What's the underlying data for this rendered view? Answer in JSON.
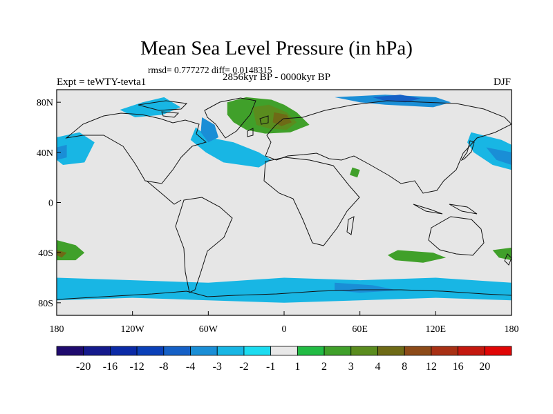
{
  "header": {
    "title": "Mean Sea Level Pressure (in hPa)",
    "stats": "rmsd= 0.777272 diff= 0.0148315",
    "experiment": "Expt = teWTY-tevta1",
    "period": "2856kyr BP - 0000kyr BP",
    "season": "DJF"
  },
  "axes": {
    "lat_ticks": [
      {
        "value": 80,
        "label": "80N"
      },
      {
        "value": 40,
        "label": "40N"
      },
      {
        "value": 0,
        "label": "0"
      },
      {
        "value": -40,
        "label": "40S"
      },
      {
        "value": -80,
        "label": "80S"
      }
    ],
    "lon_ticks": [
      {
        "value": -180,
        "label": "180"
      },
      {
        "value": -120,
        "label": "120W"
      },
      {
        "value": -60,
        "label": "60W"
      },
      {
        "value": 0,
        "label": "0"
      },
      {
        "value": 60,
        "label": "60E"
      },
      {
        "value": 120,
        "label": "120E"
      },
      {
        "value": 180,
        "label": "180"
      }
    ],
    "lon_range": [
      -180,
      180
    ],
    "lat_range": [
      -90,
      90
    ]
  },
  "colorbar": {
    "labels": [
      "-20",
      "-16",
      "-12",
      "-8",
      "-4",
      "-3",
      "-2",
      "-1",
      "1",
      "2",
      "3",
      "4",
      "8",
      "12",
      "16",
      "20"
    ],
    "colors": [
      "#1f0a6e",
      "#151a8c",
      "#0b2aa6",
      "#0a40b8",
      "#1560c6",
      "#1a8ed6",
      "#18b6e4",
      "#1cdcf0",
      "#e8e8e8",
      "#22bb44",
      "#40a02a",
      "#5a8c1e",
      "#6e6a16",
      "#8c4a18",
      "#a83014",
      "#c4180e",
      "#e00606"
    ]
  },
  "map": {
    "background": "#e6e6e6",
    "anomaly_regions": [
      {
        "name": "north-pacific-negative",
        "level": "-2",
        "points": [
          [
            -180,
            52
          ],
          [
            -162,
            56
          ],
          [
            -150,
            48
          ],
          [
            -158,
            32
          ],
          [
            -175,
            30
          ],
          [
            -180,
            34
          ]
        ]
      },
      {
        "name": "north-pacific-core",
        "level": "-3",
        "points": [
          [
            -180,
            44
          ],
          [
            -172,
            46
          ],
          [
            -172,
            36
          ],
          [
            -180,
            34
          ]
        ]
      },
      {
        "name": "north-atlantic-negative",
        "level": "-2",
        "points": [
          [
            -70,
            60
          ],
          [
            -60,
            52
          ],
          [
            -40,
            48
          ],
          [
            -20,
            40
          ],
          [
            -10,
            34
          ],
          [
            -20,
            28
          ],
          [
            -48,
            32
          ],
          [
            -62,
            40
          ],
          [
            -74,
            50
          ]
        ]
      },
      {
        "name": "labrador-negative",
        "level": "-3",
        "points": [
          [
            -65,
            68
          ],
          [
            -55,
            62
          ],
          [
            -52,
            52
          ],
          [
            -60,
            48
          ],
          [
            -66,
            56
          ]
        ]
      },
      {
        "name": "west-pacific-negative",
        "level": "-2",
        "points": [
          [
            148,
            56
          ],
          [
            172,
            50
          ],
          [
            180,
            46
          ],
          [
            180,
            26
          ],
          [
            165,
            30
          ],
          [
            150,
            40
          ],
          [
            145,
            48
          ]
        ]
      },
      {
        "name": "west-pacific-core",
        "level": "-3",
        "points": [
          [
            160,
            44
          ],
          [
            180,
            40
          ],
          [
            180,
            30
          ],
          [
            168,
            34
          ]
        ]
      },
      {
        "name": "canada-arctic-negative",
        "level": "-2",
        "points": [
          [
            -130,
            74
          ],
          [
            -112,
            80
          ],
          [
            -95,
            84
          ],
          [
            -82,
            76
          ],
          [
            -96,
            70
          ],
          [
            -118,
            68
          ]
        ]
      },
      {
        "name": "siberia-arctic-negative",
        "level": "-3",
        "points": [
          [
            40,
            84
          ],
          [
            80,
            86
          ],
          [
            120,
            84
          ],
          [
            132,
            80
          ],
          [
            118,
            76
          ],
          [
            80,
            78
          ],
          [
            60,
            80
          ]
        ]
      },
      {
        "name": "siberia-arctic-core",
        "level": "-4",
        "points": [
          [
            70,
            84
          ],
          [
            92,
            86
          ],
          [
            108,
            83
          ],
          [
            96,
            80
          ],
          [
            80,
            81
          ]
        ]
      },
      {
        "name": "greenland-low",
        "level": "2",
        "points": [
          [
            -45,
            80
          ],
          [
            -30,
            84
          ],
          [
            -10,
            82
          ],
          [
            0,
            78
          ],
          [
            10,
            72
          ],
          [
            20,
            62
          ],
          [
            5,
            56
          ],
          [
            -15,
            55
          ],
          [
            -30,
            58
          ],
          [
            -40,
            64
          ],
          [
            -45,
            70
          ]
        ]
      },
      {
        "name": "greenland-low-mid",
        "level": "3",
        "points": [
          [
            -25,
            76
          ],
          [
            -12,
            78
          ],
          [
            2,
            72
          ],
          [
            10,
            64
          ],
          [
            2,
            58
          ],
          [
            -12,
            59
          ],
          [
            -22,
            62
          ]
        ]
      },
      {
        "name": "greenland-low-core",
        "level": "4",
        "points": [
          [
            -8,
            72
          ],
          [
            2,
            70
          ],
          [
            6,
            64
          ],
          [
            -2,
            61
          ],
          [
            -9,
            64
          ]
        ]
      },
      {
        "name": "red-sea-positive",
        "level": "2",
        "points": [
          [
            54,
            28
          ],
          [
            60,
            26
          ],
          [
            58,
            20
          ],
          [
            52,
            22
          ]
        ]
      },
      {
        "name": "south-pacific-positive",
        "level": "2",
        "points": [
          [
            -180,
            -30
          ],
          [
            -165,
            -34
          ],
          [
            -158,
            -40
          ],
          [
            -165,
            -46
          ],
          [
            -180,
            -46
          ]
        ]
      },
      {
        "name": "south-pacific-core",
        "level": "4",
        "points": [
          [
            -180,
            -38
          ],
          [
            -172,
            -40
          ],
          [
            -176,
            -44
          ],
          [
            -180,
            -42
          ]
        ]
      },
      {
        "name": "indian-ocean-positive",
        "level": "2",
        "points": [
          [
            90,
            -38
          ],
          [
            118,
            -40
          ],
          [
            128,
            -44
          ],
          [
            110,
            -48
          ],
          [
            88,
            -46
          ],
          [
            82,
            -42
          ]
        ]
      },
      {
        "name": "tasman-positive",
        "level": "2",
        "points": [
          [
            165,
            -38
          ],
          [
            180,
            -36
          ],
          [
            180,
            -46
          ],
          [
            170,
            -44
          ]
        ]
      },
      {
        "name": "southern-ocean-negative",
        "level": "-2",
        "points": [
          [
            -180,
            -60
          ],
          [
            -120,
            -62
          ],
          [
            -60,
            -64
          ],
          [
            0,
            -60
          ],
          [
            60,
            -62
          ],
          [
            120,
            -60
          ],
          [
            180,
            -64
          ],
          [
            180,
            -78
          ],
          [
            120,
            -76
          ],
          [
            60,
            -78
          ],
          [
            0,
            -80
          ],
          [
            -60,
            -78
          ],
          [
            -120,
            -76
          ],
          [
            -180,
            -78
          ]
        ]
      },
      {
        "name": "southern-ocean-core",
        "level": "-3",
        "points": [
          [
            40,
            -64
          ],
          [
            70,
            -66
          ],
          [
            90,
            -70
          ],
          [
            60,
            -72
          ],
          [
            40,
            -70
          ]
        ]
      }
    ]
  }
}
